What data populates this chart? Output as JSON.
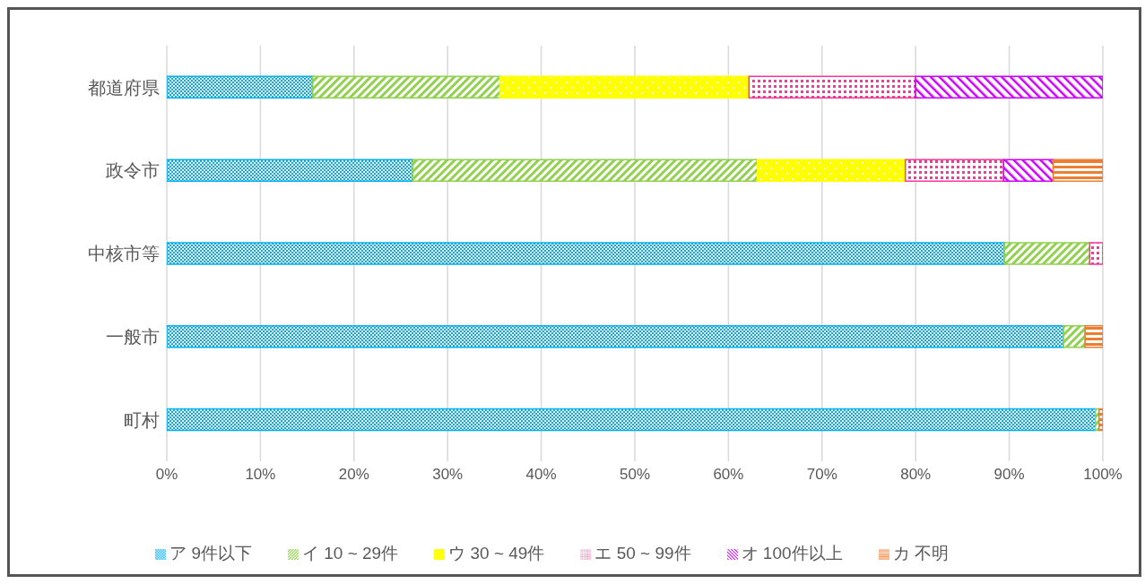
{
  "chart_data": {
    "type": "bar",
    "orientation": "horizontal",
    "stacked": true,
    "categories": [
      "都道府県",
      "政令市",
      "中核市等",
      "一般市",
      "町村"
    ],
    "series": [
      {
        "name": "ア  9件以下",
        "color": "#00b0f0",
        "values": [
          15.6,
          26.3,
          89.5,
          95.8,
          99.2
        ]
      },
      {
        "name": "イ  10 ~ 29件",
        "color": "#92d050",
        "values": [
          20.0,
          36.8,
          9.1,
          2.3,
          0.4
        ]
      },
      {
        "name": "ウ  30 ~ 49件",
        "color": "#ffff00",
        "values": [
          26.6,
          15.8,
          0,
          0,
          0
        ]
      },
      {
        "name": "エ  50 ~ 99件",
        "color": "#ff3399",
        "values": [
          17.8,
          10.5,
          1.4,
          0,
          0
        ]
      },
      {
        "name": "オ  100件以上",
        "color": "#cc00ff",
        "values": [
          20.0,
          5.3,
          0,
          0,
          0
        ]
      },
      {
        "name": "カ  不明",
        "color": "#ed7d31",
        "values": [
          0,
          5.3,
          0,
          1.9,
          0.4
        ]
      }
    ],
    "xlim": [
      0,
      100
    ],
    "xticks": [
      {
        "value": 0,
        "label": "0%"
      },
      {
        "value": 10,
        "label": "10%"
      },
      {
        "value": 20,
        "label": "20%"
      },
      {
        "value": 30,
        "label": "30%"
      },
      {
        "value": 40,
        "label": "40%"
      },
      {
        "value": 50,
        "label": "50%"
      },
      {
        "value": 60,
        "label": "60%"
      },
      {
        "value": 70,
        "label": "70%"
      },
      {
        "value": 80,
        "label": "80%"
      },
      {
        "value": 90,
        "label": "90%"
      },
      {
        "value": 100,
        "label": "100%"
      }
    ],
    "grid": "x",
    "legend": "bottom"
  }
}
